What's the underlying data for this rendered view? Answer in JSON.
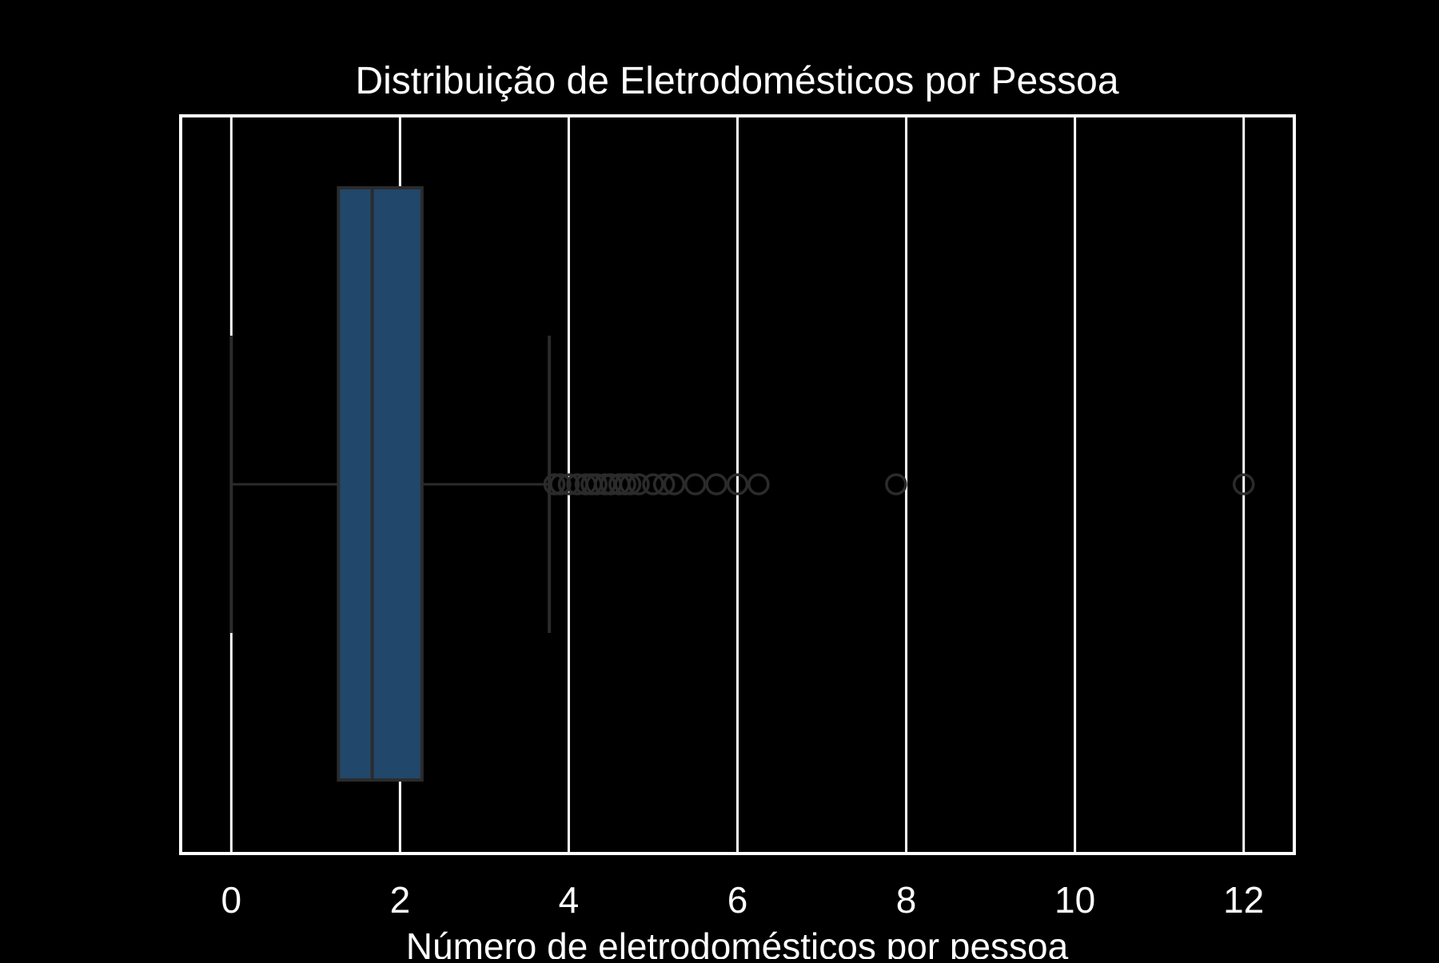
{
  "chart_data": {
    "type": "boxplot",
    "orientation": "horizontal",
    "title": "Distribuição de Eletrodomésticos por Pessoa",
    "xlabel": "Número de eletrodomésticos por pessoa",
    "ylabel": "",
    "xlim": [
      -0.6,
      12.6
    ],
    "xticks": [
      0,
      2,
      4,
      6,
      8,
      10,
      12
    ],
    "xtick_labels": [
      "0",
      "2",
      "4",
      "6",
      "8",
      "10",
      "12"
    ],
    "grid": "vertical",
    "legend": "none",
    "box": {
      "whisker_low": 0,
      "q1": 1.27,
      "median": 1.67,
      "q3": 2.26,
      "whisker_high": 3.77
    },
    "outliers": [
      3.83,
      3.9,
      4.0,
      4.1,
      4.2,
      4.27,
      4.33,
      4.43,
      4.5,
      4.6,
      4.67,
      4.73,
      4.83,
      5.0,
      5.13,
      5.25,
      5.5,
      5.75,
      6.0,
      6.25,
      7.88,
      12.0
    ],
    "colors": {
      "background": "#000000",
      "box_fill": "#21476b",
      "box_edge": "#2b2b2b",
      "whisker": "#2b2b2b",
      "grid": "#ffffff",
      "text": "#ffffff"
    }
  }
}
